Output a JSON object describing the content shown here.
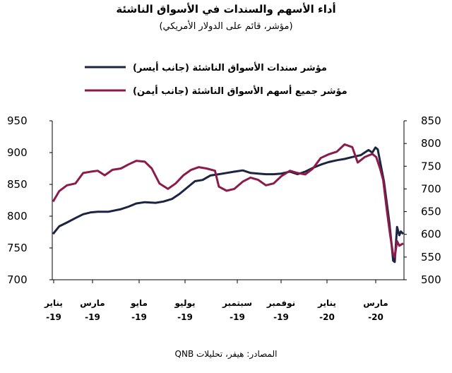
{
  "chart_data": {
    "type": "line",
    "title": "أداء الأسهم والسندات في الأسواق الناشئة",
    "subtitle": "(مؤشر، قائم على الدولار الأمريكي)",
    "source": "المصادر: هيفر، تحليلات QNB",
    "x_labels": [
      {
        "month": "يناير",
        "year": "19"
      },
      {
        "month": "مارس",
        "year": "19"
      },
      {
        "month": "مايو",
        "year": "19"
      },
      {
        "month": "يوليو",
        "year": "19"
      },
      {
        "month": "سبتمبر",
        "year": "19"
      },
      {
        "month": "نوفمبر",
        "year": "19"
      },
      {
        "month": "يناير",
        "year": "20"
      },
      {
        "month": "مارس",
        "year": "20"
      }
    ],
    "y_left": {
      "min": 700,
      "max": 950,
      "ticks": [
        "950",
        "900",
        "850",
        "800",
        "750",
        "700"
      ]
    },
    "y_right": {
      "min": 500,
      "max": 850,
      "ticks": [
        "850",
        "800",
        "750",
        "700",
        "650",
        "600",
        "550",
        "500"
      ]
    },
    "legend_position": "top-center",
    "series": [
      {
        "name": "مؤشر سندات الأسواق الناشئة (جانب أيسر)",
        "axis": "left",
        "color": "#1b2440",
        "points": [
          [
            "2019-01-02",
            772
          ],
          [
            "2019-01-10",
            784
          ],
          [
            "2019-01-20",
            790
          ],
          [
            "2019-01-31",
            797
          ],
          [
            "2019-02-10",
            803
          ],
          [
            "2019-02-20",
            806
          ],
          [
            "2019-03-01",
            807
          ],
          [
            "2019-03-15",
            807
          ],
          [
            "2019-03-31",
            811
          ],
          [
            "2019-04-10",
            815
          ],
          [
            "2019-04-20",
            820
          ],
          [
            "2019-05-01",
            822
          ],
          [
            "2019-05-15",
            821
          ],
          [
            "2019-05-25",
            823
          ],
          [
            "2019-06-05",
            827
          ],
          [
            "2019-06-15",
            835
          ],
          [
            "2019-06-25",
            845
          ],
          [
            "2019-07-05",
            855
          ],
          [
            "2019-07-15",
            857
          ],
          [
            "2019-07-25",
            864
          ],
          [
            "2019-08-05",
            866
          ],
          [
            "2019-08-15",
            868
          ],
          [
            "2019-08-25",
            870
          ],
          [
            "2019-09-05",
            872
          ],
          [
            "2019-09-15",
            868
          ],
          [
            "2019-09-25",
            867
          ],
          [
            "2019-10-05",
            866
          ],
          [
            "2019-10-15",
            866
          ],
          [
            "2019-10-25",
            867
          ],
          [
            "2019-11-05",
            870
          ],
          [
            "2019-11-15",
            866
          ],
          [
            "2019-11-25",
            870
          ],
          [
            "2019-12-05",
            876
          ],
          [
            "2019-12-15",
            881
          ],
          [
            "2019-12-25",
            885
          ],
          [
            "2020-01-05",
            888
          ],
          [
            "2020-01-15",
            890
          ],
          [
            "2020-01-25",
            893
          ],
          [
            "2020-02-05",
            896
          ],
          [
            "2020-02-15",
            904
          ],
          [
            "2020-02-20",
            900
          ],
          [
            "2020-02-24",
            908
          ],
          [
            "2020-02-27",
            905
          ],
          [
            "2020-03-02",
            880
          ],
          [
            "2020-03-06",
            855
          ],
          [
            "2020-03-10",
            818
          ],
          [
            "2020-03-13",
            790
          ],
          [
            "2020-03-16",
            755
          ],
          [
            "2020-03-18",
            730
          ],
          [
            "2020-03-20",
            728
          ],
          [
            "2020-03-23",
            783
          ],
          [
            "2020-03-26",
            770
          ],
          [
            "2020-03-28",
            776
          ],
          [
            "2020-03-31",
            772
          ]
        ]
      },
      {
        "name": "مؤشر جميع أسهم الأسواق الناشئة (جانب أيمن)",
        "axis": "right",
        "color": "#8c1a4a",
        "points": [
          [
            "2019-01-02",
            672
          ],
          [
            "2019-01-10",
            695
          ],
          [
            "2019-01-20",
            708
          ],
          [
            "2019-01-31",
            712
          ],
          [
            "2019-02-10",
            735
          ],
          [
            "2019-02-20",
            738
          ],
          [
            "2019-03-01",
            740
          ],
          [
            "2019-03-10",
            730
          ],
          [
            "2019-03-20",
            742
          ],
          [
            "2019-03-31",
            745
          ],
          [
            "2019-04-10",
            754
          ],
          [
            "2019-04-20",
            762
          ],
          [
            "2019-05-01",
            760
          ],
          [
            "2019-05-10",
            745
          ],
          [
            "2019-05-20",
            712
          ],
          [
            "2019-05-31",
            700
          ],
          [
            "2019-06-10",
            712
          ],
          [
            "2019-06-20",
            730
          ],
          [
            "2019-06-30",
            742
          ],
          [
            "2019-07-10",
            748
          ],
          [
            "2019-07-20",
            745
          ],
          [
            "2019-07-31",
            740
          ],
          [
            "2019-08-05",
            705
          ],
          [
            "2019-08-15",
            696
          ],
          [
            "2019-08-25",
            700
          ],
          [
            "2019-09-05",
            716
          ],
          [
            "2019-09-15",
            725
          ],
          [
            "2019-09-25",
            720
          ],
          [
            "2019-10-05",
            708
          ],
          [
            "2019-10-15",
            712
          ],
          [
            "2019-10-25",
            728
          ],
          [
            "2019-11-05",
            740
          ],
          [
            "2019-11-15",
            735
          ],
          [
            "2019-11-25",
            732
          ],
          [
            "2019-12-05",
            745
          ],
          [
            "2019-12-15",
            768
          ],
          [
            "2019-12-25",
            776
          ],
          [
            "2020-01-05",
            782
          ],
          [
            "2020-01-15",
            798
          ],
          [
            "2020-01-25",
            792
          ],
          [
            "2020-02-01",
            758
          ],
          [
            "2020-02-10",
            770
          ],
          [
            "2020-02-20",
            777
          ],
          [
            "2020-02-25",
            770
          ],
          [
            "2020-03-01",
            745
          ],
          [
            "2020-03-05",
            720
          ],
          [
            "2020-03-10",
            650
          ],
          [
            "2020-03-14",
            600
          ],
          [
            "2020-03-18",
            555
          ],
          [
            "2020-03-20",
            550
          ],
          [
            "2020-03-23",
            585
          ],
          [
            "2020-03-26",
            575
          ],
          [
            "2020-03-31",
            580
          ]
        ]
      }
    ]
  }
}
